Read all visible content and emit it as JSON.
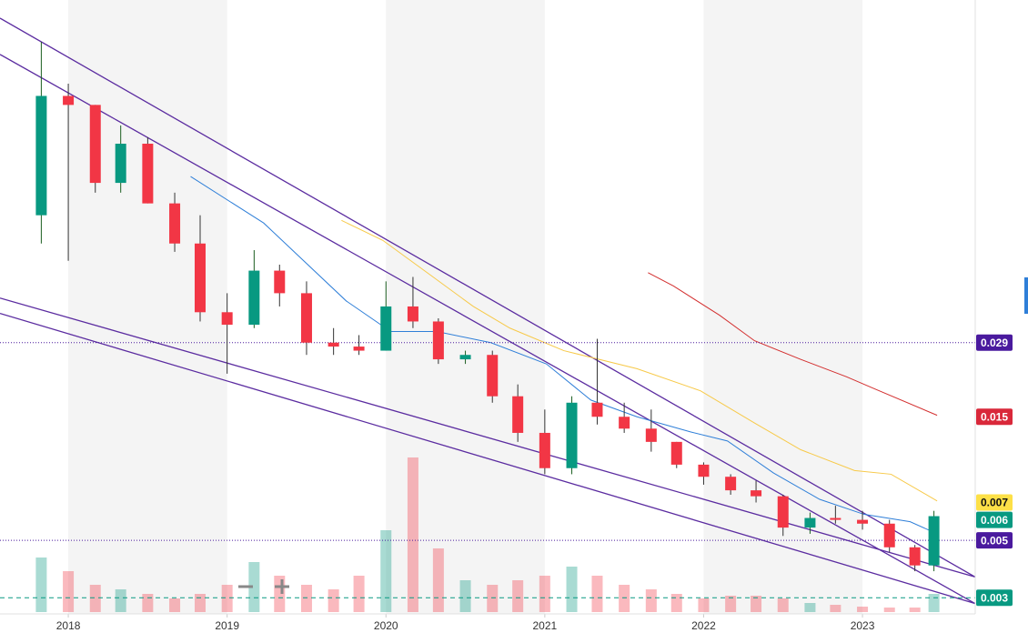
{
  "chart_data": {
    "type": "candlestick",
    "xlim": [
      2017.57,
      2023.71
    ],
    "xticks": [
      2018,
      2019,
      2020,
      2021,
      2022,
      2023
    ],
    "ylim": [
      0.0026,
      0.61
    ],
    "log_scale": true,
    "up_color": "#089981",
    "down_color": "#f23645",
    "ohlc": {
      "x": [
        2017.83,
        2018,
        2018.17,
        2018.33,
        2018.5,
        2018.67,
        2018.83,
        2019,
        2019.17,
        2019.33,
        2019.5,
        2019.67,
        2019.83,
        2020,
        2020.17,
        2020.33,
        2020.5,
        2020.67,
        2020.83,
        2021,
        2021.17,
        2021.33,
        2021.5,
        2021.67,
        2021.83,
        2022,
        2022.17,
        2022.33,
        2022.5,
        2022.67,
        2022.83,
        2023,
        2023.17,
        2023.33,
        2023.45
      ],
      "open": [
        0.09,
        0.26,
        0.24,
        0.12,
        0.17,
        0.1,
        0.07,
        0.038,
        0.034,
        0.055,
        0.045,
        0.029,
        0.028,
        0.027,
        0.04,
        0.035,
        0.025,
        0.026,
        0.018,
        0.013,
        0.0095,
        0.017,
        0.015,
        0.0135,
        0.012,
        0.0098,
        0.0088,
        0.0078,
        0.0074,
        0.0056,
        0.0061,
        0.006,
        0.0058,
        0.0047,
        0.004
      ],
      "high": [
        0.42,
        0.29,
        0.24,
        0.2,
        0.18,
        0.11,
        0.09,
        0.045,
        0.066,
        0.058,
        0.05,
        0.033,
        0.031,
        0.05,
        0.052,
        0.036,
        0.027,
        0.027,
        0.02,
        0.016,
        0.018,
        0.03,
        0.017,
        0.016,
        0.012,
        0.01,
        0.009,
        0.0085,
        0.0075,
        0.0064,
        0.0068,
        0.0065,
        0.006,
        0.0048,
        0.0065
      ],
      "low": [
        0.07,
        0.06,
        0.11,
        0.11,
        0.1,
        0.065,
        0.035,
        0.022,
        0.033,
        0.04,
        0.026,
        0.026,
        0.026,
        0.027,
        0.033,
        0.024,
        0.024,
        0.017,
        0.012,
        0.009,
        0.009,
        0.014,
        0.013,
        0.011,
        0.0095,
        0.0082,
        0.0075,
        0.007,
        0.0052,
        0.0053,
        0.0058,
        0.0055,
        0.0045,
        0.0038,
        0.0038
      ],
      "close": [
        0.26,
        0.24,
        0.12,
        0.17,
        0.1,
        0.07,
        0.038,
        0.034,
        0.055,
        0.045,
        0.029,
        0.028,
        0.027,
        0.04,
        0.035,
        0.025,
        0.026,
        0.018,
        0.013,
        0.0095,
        0.017,
        0.015,
        0.0135,
        0.012,
        0.0098,
        0.0088,
        0.0078,
        0.0074,
        0.0056,
        0.0061,
        0.006,
        0.0058,
        0.0047,
        0.004,
        0.0062
      ],
      "volume": [
        60,
        45,
        30,
        25,
        20,
        15,
        20,
        30,
        55,
        40,
        30,
        25,
        40,
        90,
        170,
        70,
        35,
        30,
        35,
        40,
        50,
        40,
        30,
        25,
        20,
        15,
        18,
        18,
        15,
        10,
        8,
        6,
        5,
        5,
        20
      ]
    },
    "volume_lim": [
      0,
      180
    ],
    "moving_averages": [
      {
        "color": "#2f7fd8",
        "x": [
          2018.77,
          2019.23,
          2019.75,
          2020.03,
          2020.32,
          2020.66,
          2021.01,
          2021.29,
          2021.58,
          2021.92,
          2022.15,
          2022.44,
          2022.73,
          2023.01,
          2023.3,
          2023.47
        ],
        "values": [
          0.127,
          0.084,
          0.042,
          0.032,
          0.032,
          0.029,
          0.024,
          0.0174,
          0.015,
          0.0131,
          0.0121,
          0.0091,
          0.0072,
          0.0063,
          0.0059,
          0.0053
        ]
      },
      {
        "color": "#f7c948",
        "x": [
          2019.72,
          2019.98,
          2020.26,
          2020.55,
          2020.78,
          2021.12,
          2021.58,
          2021.98,
          2022.32,
          2022.61,
          2022.95,
          2023.18,
          2023.47
        ],
        "values": [
          0.086,
          0.072,
          0.054,
          0.04,
          0.033,
          0.027,
          0.023,
          0.0189,
          0.0142,
          0.0112,
          0.0093,
          0.009,
          0.0071
        ]
      },
      {
        "color": "#d32f2f",
        "x": [
          2021.65,
          2021.81,
          2022.1,
          2022.32,
          2022.61,
          2022.9,
          2023.07,
          2023.47
        ],
        "values": [
          0.054,
          0.048,
          0.037,
          0.0295,
          0.025,
          0.0214,
          0.0193,
          0.0152
        ]
      }
    ],
    "trendlines": [
      {
        "x": [
          2017.57,
          2023.71
        ],
        "values": [
          0.519,
          0.00361
        ]
      },
      {
        "x": [
          2017.57,
          2023.71
        ],
        "values": [
          0.376,
          0.00285
        ]
      },
      {
        "x": [
          2017.57,
          2023.71
        ],
        "values": [
          0.0431,
          0.00361
        ]
      },
      {
        "x": [
          2017.57,
          2023.71
        ],
        "values": [
          0.0376,
          0.00285
        ]
      }
    ],
    "trendline_color": "#5b2ca0",
    "price_labels": [
      {
        "value": 0.029,
        "color": "#4a1a9e",
        "line": "dotted"
      },
      {
        "value": 0.015,
        "color": "#d9283a"
      },
      {
        "value": 0.007,
        "color": "#fde047"
      },
      {
        "value": 0.005,
        "color": "#4a1a9e",
        "line": "dotted"
      },
      {
        "value": 0.006,
        "color": "#089981"
      },
      {
        "value": 0.003,
        "color": "#089981",
        "line": "dashed"
      }
    ]
  }
}
